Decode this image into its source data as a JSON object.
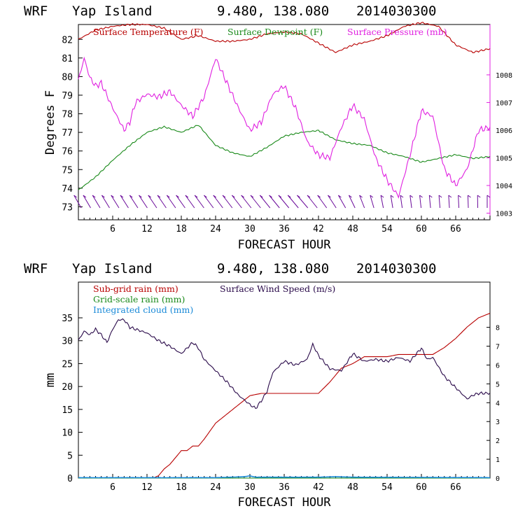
{
  "chart_data": [
    {
      "type": "line",
      "header": {
        "model": "WRF",
        "location": "Yap Island",
        "coords": "9.480, 138.080",
        "init": "2014030300"
      },
      "xlabel": "FORECAST HOUR",
      "ylabel": "Degrees F",
      "xlim": [
        0,
        72
      ],
      "xticks": [
        6,
        12,
        18,
        24,
        30,
        36,
        42,
        48,
        54,
        60,
        66
      ],
      "ylim": [
        72.3,
        82.8
      ],
      "yticks": [
        73,
        74,
        75,
        76,
        77,
        78,
        79,
        80,
        81,
        82
      ],
      "y2lim": [
        1002.76,
        1009.82
      ],
      "y2ticks": [
        1003,
        1004,
        1005,
        1006,
        1007,
        1008
      ],
      "colors": {
        "temperature": "#b80000",
        "dewpoint": "#1a8a1a",
        "pressure": "#e020e0",
        "wind_barbs": "#6a0a9a"
      },
      "series": [
        {
          "name": "Surface Temperature (F)",
          "axis": "left",
          "x": [
            0,
            3,
            6,
            9,
            12,
            15,
            18,
            21,
            24,
            27,
            30,
            33,
            36,
            39,
            42,
            45,
            48,
            51,
            54,
            57,
            60,
            63,
            66,
            69,
            72
          ],
          "values": [
            82.0,
            82.5,
            82.7,
            82.8,
            82.8,
            82.6,
            82.0,
            82.2,
            81.9,
            81.9,
            82.0,
            82.3,
            82.4,
            82.3,
            81.8,
            81.3,
            81.7,
            81.9,
            82.2,
            82.7,
            82.9,
            82.7,
            81.7,
            81.3,
            81.5
          ]
        },
        {
          "name": "Surface Dewpoint (F)",
          "axis": "left",
          "x": [
            0,
            3,
            6,
            9,
            12,
            15,
            18,
            21,
            24,
            27,
            30,
            33,
            36,
            39,
            42,
            45,
            48,
            51,
            54,
            57,
            60,
            63,
            66,
            69,
            72
          ],
          "values": [
            73.9,
            74.6,
            75.5,
            76.3,
            77.0,
            77.3,
            77.0,
            77.4,
            76.3,
            75.9,
            75.7,
            76.2,
            76.8,
            77.0,
            77.1,
            76.6,
            76.4,
            76.3,
            75.9,
            75.7,
            75.4,
            75.6,
            75.8,
            75.6,
            75.7
          ]
        },
        {
          "name": "Surface Pressure (mb)",
          "axis": "right",
          "x": [
            0,
            1,
            2,
            3,
            4,
            6,
            8,
            9,
            10,
            12,
            14,
            16,
            18,
            20,
            22,
            24,
            26,
            28,
            30,
            32,
            34,
            36,
            38,
            40,
            42,
            44,
            46,
            48,
            50,
            52,
            54,
            56,
            58,
            60,
            62,
            64,
            66,
            68,
            70,
            72
          ],
          "values": [
            1007.8,
            1008.6,
            1007.9,
            1007.6,
            1007.7,
            1006.8,
            1006.0,
            1006.3,
            1007.0,
            1007.3,
            1007.2,
            1007.4,
            1006.9,
            1006.5,
            1007.2,
            1008.6,
            1007.7,
            1006.8,
            1006.0,
            1006.3,
            1007.3,
            1007.6,
            1006.8,
            1005.6,
            1005.1,
            1005.0,
            1006.1,
            1006.9,
            1006.4,
            1005.0,
            1004.2,
            1003.6,
            1005.1,
            1006.7,
            1006.5,
            1004.6,
            1004.0,
            1004.6,
            1006.0,
            1006.1
          ]
        }
      ],
      "wind_barbs": {
        "count": 44,
        "color": "#6a0a9a"
      }
    },
    {
      "type": "line",
      "header": {
        "model": "WRF",
        "location": "Yap Island",
        "coords": "9.480, 138.080",
        "init": "2014030300"
      },
      "xlabel": "FORECAST HOUR",
      "ylabel": "mm",
      "xlim": [
        0,
        72
      ],
      "xticks": [
        6,
        12,
        18,
        24,
        30,
        36,
        42,
        48,
        54,
        60,
        66
      ],
      "ylim": [
        0,
        42.8
      ],
      "yticks": [
        0,
        5,
        10,
        15,
        20,
        25,
        30,
        35
      ],
      "y2lim": [
        0,
        10.4
      ],
      "y2ticks": [
        0,
        1,
        2,
        3,
        4,
        5,
        6,
        7,
        8
      ],
      "colors": {
        "subgrid": "#b80000",
        "gridscale": "#1a8a1a",
        "cloud": "#1a8ad8",
        "wind": "#2a0a4a"
      },
      "series": [
        {
          "name": "Sub-grid rain (mm)",
          "axis": "left",
          "x": [
            0,
            13,
            14,
            15,
            16,
            17,
            18,
            19,
            20,
            21,
            22,
            24,
            26,
            28,
            30,
            32,
            34,
            36,
            38,
            40,
            42,
            44,
            46,
            48,
            50,
            52,
            54,
            56,
            58,
            60,
            62,
            64,
            66,
            68,
            70,
            72
          ],
          "values": [
            0,
            0,
            0.5,
            2,
            3,
            4.5,
            6,
            6,
            7,
            7,
            8.5,
            12,
            14,
            16,
            18,
            18.5,
            18.5,
            18.5,
            18.5,
            18.5,
            18.5,
            21,
            24,
            25,
            26.5,
            26.5,
            26.5,
            27,
            27,
            27,
            27,
            28.5,
            30.5,
            33,
            35,
            36
          ]
        },
        {
          "name": "Grid-scale rain (mm)",
          "axis": "left",
          "x": [
            0,
            72
          ],
          "values": [
            0,
            0
          ]
        },
        {
          "name": "Integrated cloud (mm)",
          "axis": "left",
          "x": [
            0,
            24,
            29,
            30,
            31,
            42,
            45,
            48,
            72
          ],
          "values": [
            0.1,
            0.1,
            0.3,
            0.5,
            0.2,
            0.2,
            0.3,
            0.2,
            0.1
          ]
        },
        {
          "name": "Surface Wind Speed (m/s)",
          "axis": "right",
          "x": [
            0,
            1,
            2,
            3,
            4,
            5,
            6,
            7,
            8,
            9,
            10,
            12,
            14,
            16,
            18,
            20,
            21,
            22,
            24,
            26,
            28,
            30,
            31,
            32,
            33,
            34,
            36,
            38,
            40,
            41,
            42,
            44,
            46,
            48,
            50,
            52,
            54,
            56,
            58,
            60,
            61,
            62,
            64,
            66,
            68,
            69,
            70,
            72
          ],
          "values": [
            7.3,
            7.8,
            7.6,
            7.9,
            7.6,
            7.2,
            7.9,
            8.4,
            8.4,
            8.0,
            7.9,
            7.7,
            7.3,
            7.0,
            6.6,
            7.2,
            6.9,
            6.3,
            5.7,
            5.1,
            4.4,
            3.9,
            3.7,
            4.1,
            4.6,
            5.6,
            6.2,
            6.0,
            6.3,
            7.1,
            6.5,
            5.8,
            5.7,
            6.6,
            6.2,
            6.3,
            6.2,
            6.4,
            6.2,
            6.9,
            6.3,
            6.4,
            5.4,
            4.8,
            4.2,
            4.4,
            4.5,
            4.5
          ]
        }
      ]
    }
  ]
}
